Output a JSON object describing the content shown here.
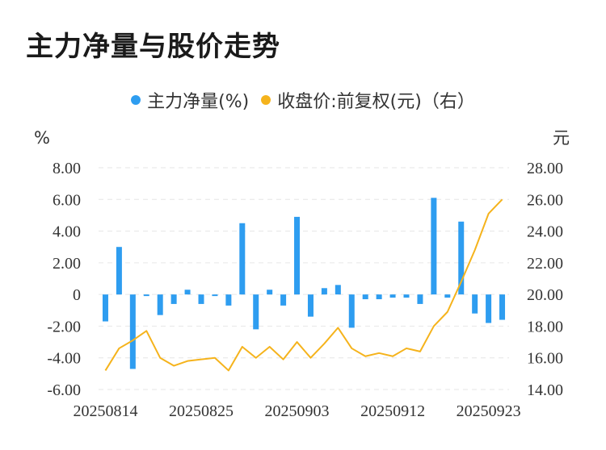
{
  "title": "主力净量与股价走势",
  "legend": {
    "series1": "主力净量(%)",
    "series2": "收盘价:前复权(元)（右）"
  },
  "colors": {
    "bar": "#2e9df0",
    "line": "#f5b31c",
    "grid": "#e6e6e6"
  },
  "chart_data": {
    "type": "bar",
    "title": "主力净量与股价走势",
    "left_unit": "%",
    "right_unit": "元",
    "ylim": [
      -6,
      8
    ],
    "y2lim": [
      14,
      28
    ],
    "yticks": [
      "8.00",
      "6.00",
      "4.00",
      "2.00",
      "0",
      "-2.00",
      "-4.00",
      "-6.00"
    ],
    "y2ticks": [
      "28.00",
      "26.00",
      "24.00",
      "22.00",
      "20.00",
      "18.00",
      "16.00",
      "14.00"
    ],
    "xtick_labels": [
      "20250814",
      "20250825",
      "20250903",
      "20250912",
      "20250923"
    ],
    "xtick_indices": [
      0,
      7,
      14,
      21,
      28
    ],
    "grid": true,
    "legend_position": "top",
    "series": [
      {
        "name": "主力净量(%)",
        "type": "bar",
        "values": [
          -1.7,
          3.0,
          -4.7,
          -0.1,
          -1.3,
          -0.6,
          0.3,
          -0.6,
          -0.1,
          -0.7,
          4.5,
          -2.2,
          0.3,
          -0.7,
          4.9,
          -1.4,
          0.4,
          0.6,
          -2.1,
          -0.3,
          -0.3,
          -0.2,
          -0.2,
          -0.6,
          6.1,
          -0.2,
          4.6,
          -1.2,
          -1.8,
          -1.6
        ]
      },
      {
        "name": "收盘价:前复权(元)（右）",
        "type": "line",
        "values": [
          15.2,
          16.6,
          17.1,
          17.7,
          16.0,
          15.5,
          15.8,
          15.9,
          16.0,
          15.2,
          16.7,
          16.0,
          16.7,
          15.9,
          17.0,
          16.0,
          16.9,
          17.9,
          16.6,
          16.1,
          16.3,
          16.1,
          16.6,
          16.4,
          18.0,
          18.9,
          20.8,
          22.8,
          25.1,
          26.0
        ]
      }
    ]
  }
}
